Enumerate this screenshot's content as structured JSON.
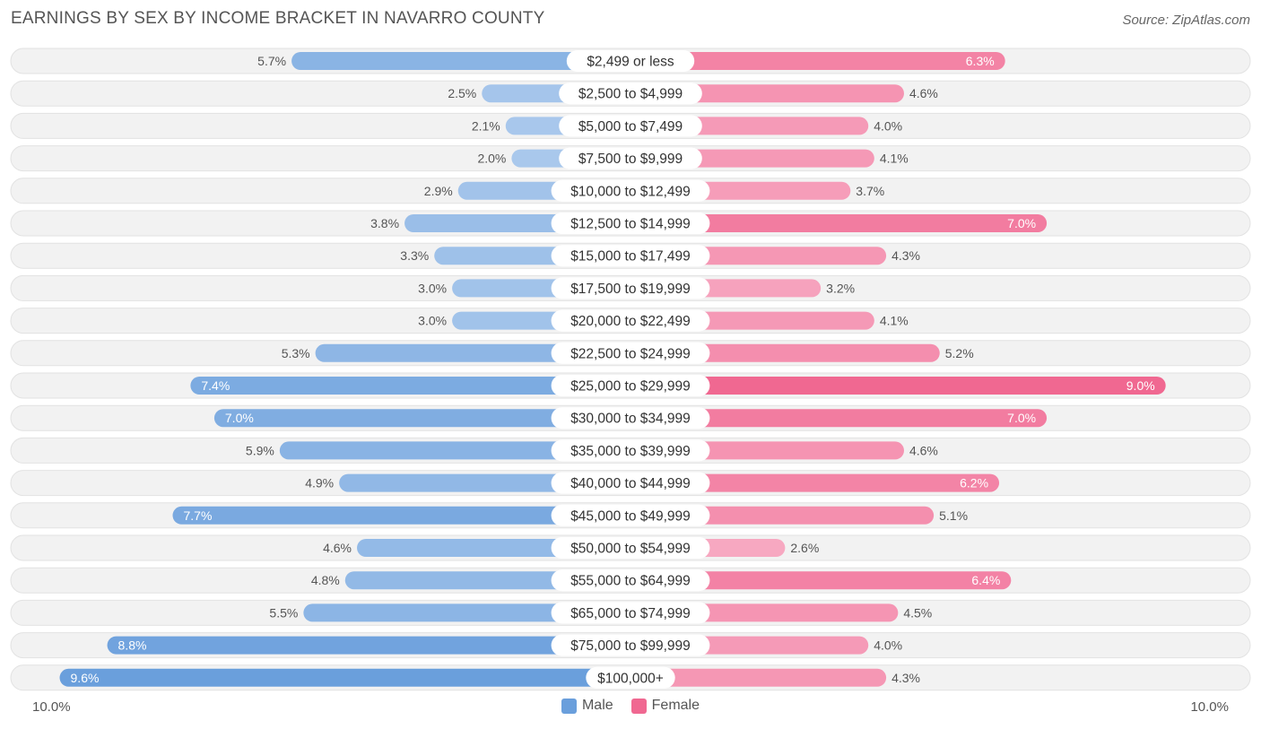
{
  "title": "EARNINGS BY SEX BY INCOME BRACKET IN NAVARRO COUNTY",
  "source": "Source: ZipAtlas.com",
  "colors": {
    "male": "#6a9fdc",
    "male_light": "#a9c8ec",
    "female": "#f06891",
    "female_light": "#f7a8c1",
    "track": "#f1f1f1"
  },
  "legend": {
    "male_label": "Male",
    "female_label": "Female"
  },
  "axis": {
    "left_label": "10.0%",
    "right_label": "10.0%"
  },
  "chart_data": {
    "type": "bar",
    "orientation": "horizontal-diverging",
    "title": "EARNINGS BY SEX BY INCOME BRACKET IN NAVARRO COUNTY",
    "xlim": [
      -10,
      10
    ],
    "categories": [
      "$2,499 or less",
      "$2,500 to $4,999",
      "$5,000 to $7,499",
      "$7,500 to $9,999",
      "$10,000 to $12,499",
      "$12,500 to $14,999",
      "$15,000 to $17,499",
      "$17,500 to $19,999",
      "$20,000 to $22,499",
      "$22,500 to $24,999",
      "$25,000 to $29,999",
      "$30,000 to $34,999",
      "$35,000 to $39,999",
      "$40,000 to $44,999",
      "$45,000 to $49,999",
      "$50,000 to $54,999",
      "$55,000 to $64,999",
      "$65,000 to $74,999",
      "$75,000 to $99,999",
      "$100,000+"
    ],
    "series": [
      {
        "name": "Male",
        "values": [
          5.7,
          2.5,
          2.1,
          2.0,
          2.9,
          3.8,
          3.3,
          3.0,
          3.0,
          5.3,
          7.4,
          7.0,
          5.9,
          4.9,
          7.7,
          4.6,
          4.8,
          5.5,
          8.8,
          9.6
        ],
        "labels": [
          "5.7%",
          "2.5%",
          "2.1%",
          "2.0%",
          "2.9%",
          "3.8%",
          "3.3%",
          "3.0%",
          "3.0%",
          "5.3%",
          "7.4%",
          "7.0%",
          "5.9%",
          "4.9%",
          "7.7%",
          "4.6%",
          "4.8%",
          "5.5%",
          "8.8%",
          "9.6%"
        ]
      },
      {
        "name": "Female",
        "values": [
          6.3,
          4.6,
          4.0,
          4.1,
          3.7,
          7.0,
          4.3,
          3.2,
          4.1,
          5.2,
          9.0,
          7.0,
          4.6,
          6.2,
          5.1,
          2.6,
          6.4,
          4.5,
          4.0,
          4.3
        ],
        "labels": [
          "6.3%",
          "4.6%",
          "4.0%",
          "4.1%",
          "3.7%",
          "7.0%",
          "4.3%",
          "3.2%",
          "4.1%",
          "5.2%",
          "9.0%",
          "7.0%",
          "4.6%",
          "6.2%",
          "5.1%",
          "2.6%",
          "6.4%",
          "4.5%",
          "4.0%",
          "4.3%"
        ]
      }
    ]
  }
}
